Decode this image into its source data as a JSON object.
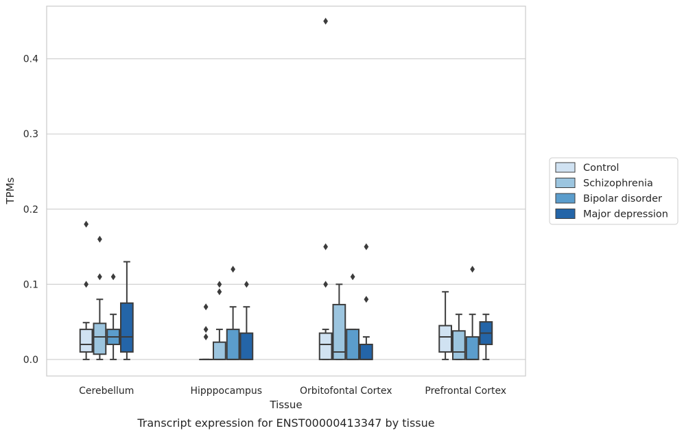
{
  "chart_data": {
    "type": "box",
    "caption": "Transcript expression for ENST00000413347 by tissue",
    "xlabel": "Tissue",
    "ylabel": "TPMs",
    "ylim": [
      -0.022,
      0.47
    ],
    "yticks": [
      0.0,
      0.1,
      0.2,
      0.3,
      0.4
    ],
    "ytick_labels": [
      "0.0",
      "0.1",
      "0.2",
      "0.3",
      "0.4"
    ],
    "grid": "horizontal",
    "legend_position": "right",
    "categories": [
      "Cerebellum",
      "Hipppocampus",
      "Orbitofontal Cortex",
      "Prefrontal Cortex"
    ],
    "series": [
      {
        "name": "Control",
        "color": "#d0e2f2",
        "boxes": [
          {
            "whislo": 0.0,
            "q1": 0.01,
            "med": 0.02,
            "q3": 0.04,
            "whishi": 0.049,
            "fliers": [
              0.1,
              0.18
            ]
          },
          {
            "whislo": 0.0,
            "q1": 0.0,
            "med": 0.0,
            "q3": 0.0,
            "whishi": 0.0,
            "fliers": [
              0.03,
              0.04,
              0.07
            ]
          },
          {
            "whislo": 0.0,
            "q1": 0.0,
            "med": 0.02,
            "q3": 0.035,
            "whishi": 0.04,
            "fliers": [
              0.1,
              0.15,
              0.45
            ]
          },
          {
            "whislo": 0.0,
            "q1": 0.01,
            "med": 0.03,
            "q3": 0.045,
            "whishi": 0.09,
            "fliers": []
          }
        ]
      },
      {
        "name": "Schizophrenia",
        "color": "#9cc5df",
        "boxes": [
          {
            "whislo": 0.0,
            "q1": 0.007,
            "med": 0.03,
            "q3": 0.048,
            "whishi": 0.08,
            "fliers": [
              0.11,
              0.16
            ]
          },
          {
            "whislo": 0.0,
            "q1": 0.0,
            "med": 0.0,
            "q3": 0.023,
            "whishi": 0.04,
            "fliers": [
              0.09,
              0.1
            ]
          },
          {
            "whislo": 0.0,
            "q1": 0.0,
            "med": 0.01,
            "q3": 0.073,
            "whishi": 0.1,
            "fliers": []
          },
          {
            "whislo": 0.0,
            "q1": 0.0,
            "med": 0.01,
            "q3": 0.038,
            "whishi": 0.06,
            "fliers": []
          }
        ]
      },
      {
        "name": "Bipolar disorder",
        "color": "#5b9dcc",
        "boxes": [
          {
            "whislo": 0.0,
            "q1": 0.02,
            "med": 0.03,
            "q3": 0.04,
            "whishi": 0.06,
            "fliers": [
              0.11
            ]
          },
          {
            "whislo": 0.0,
            "q1": 0.0,
            "med": 0.0,
            "q3": 0.04,
            "whishi": 0.07,
            "fliers": [
              0.12
            ]
          },
          {
            "whislo": 0.0,
            "q1": 0.0,
            "med": 0.0,
            "q3": 0.04,
            "whishi": 0.04,
            "fliers": [
              0.11
            ]
          },
          {
            "whislo": 0.0,
            "q1": 0.0,
            "med": 0.0,
            "q3": 0.03,
            "whishi": 0.06,
            "fliers": [
              0.12
            ]
          }
        ]
      },
      {
        "name": "Major depression",
        "color": "#2465a8",
        "boxes": [
          {
            "whislo": 0.0,
            "q1": 0.01,
            "med": 0.03,
            "q3": 0.075,
            "whishi": 0.13,
            "fliers": []
          },
          {
            "whislo": 0.0,
            "q1": 0.0,
            "med": 0.0,
            "q3": 0.035,
            "whishi": 0.07,
            "fliers": [
              0.1
            ]
          },
          {
            "whislo": 0.0,
            "q1": 0.0,
            "med": 0.0,
            "q3": 0.02,
            "whishi": 0.03,
            "fliers": [
              0.08,
              0.15
            ]
          },
          {
            "whislo": 0.0,
            "q1": 0.02,
            "med": 0.035,
            "q3": 0.05,
            "whishi": 0.06,
            "fliers": []
          }
        ]
      }
    ]
  }
}
